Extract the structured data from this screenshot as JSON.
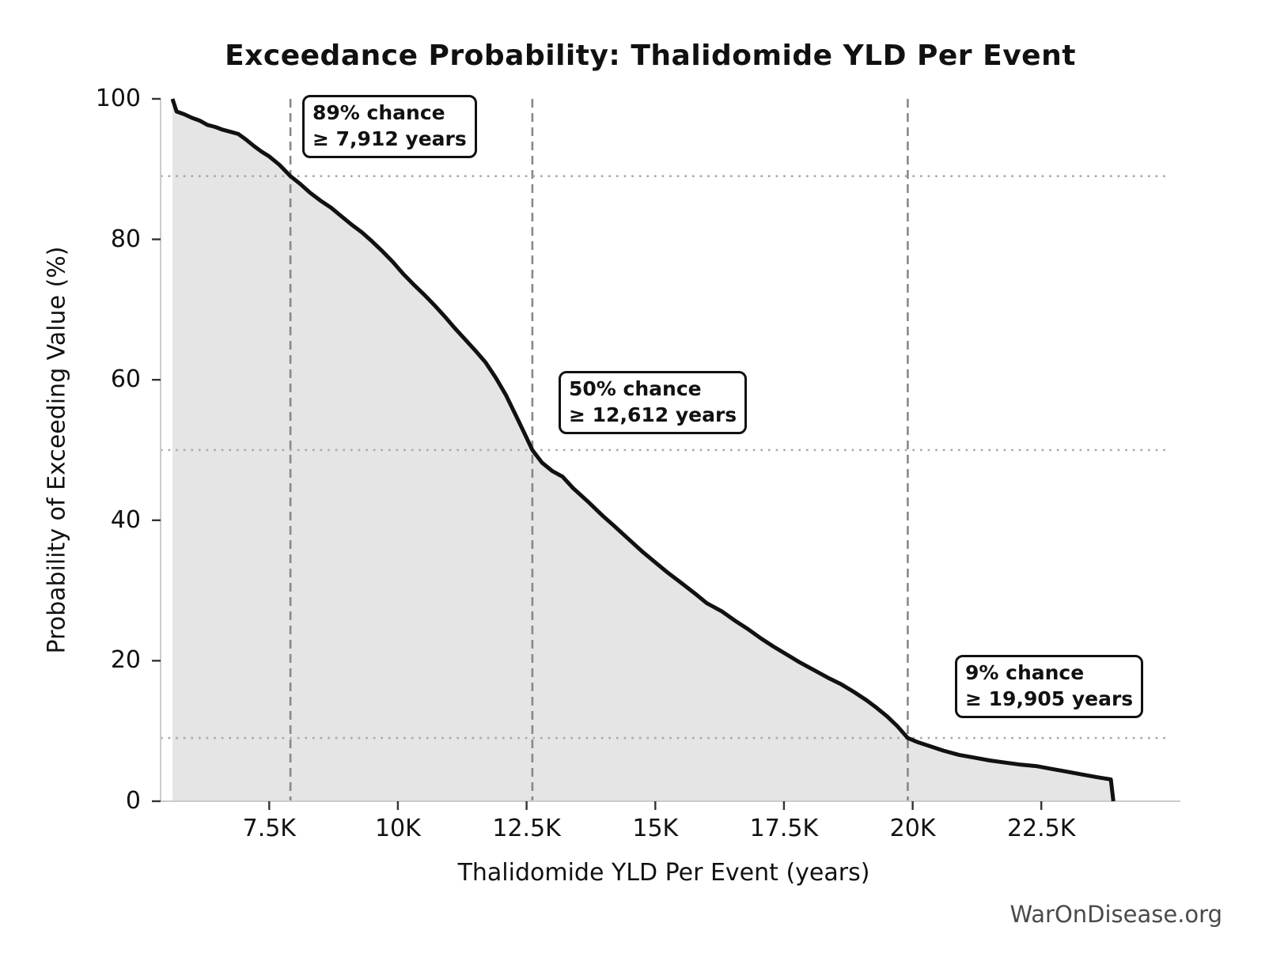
{
  "chart": {
    "source_label": "WarOnDisease.org"
  },
  "chart_data": {
    "type": "area",
    "title": "Exceedance Probability: Thalidomide YLD Per Event",
    "xlabel": "Thalidomide YLD Per Event (years)",
    "ylabel": "Probability of Exceeding Value (%)",
    "watermark": "WarOnDisease.org",
    "xlim": [
      5390,
      24940
    ],
    "ylim": [
      0,
      100
    ],
    "x_ticks": [
      {
        "value": 7500,
        "label": "7.5K"
      },
      {
        "value": 10000,
        "label": "10K"
      },
      {
        "value": 12500,
        "label": "12.5K"
      },
      {
        "value": 15000,
        "label": "15K"
      },
      {
        "value": 17500,
        "label": "17.5K"
      },
      {
        "value": 20000,
        "label": "20K"
      },
      {
        "value": 22500,
        "label": "22.5K"
      }
    ],
    "y_ticks": [
      {
        "value": 0,
        "label": "0"
      },
      {
        "value": 20,
        "label": "20"
      },
      {
        "value": 40,
        "label": "40"
      },
      {
        "value": 60,
        "label": "60"
      },
      {
        "value": 80,
        "label": "80"
      },
      {
        "value": 100,
        "label": "100"
      }
    ],
    "grid": {
      "dashed_vlines_x": [
        7912,
        12612,
        19905
      ],
      "dotted_hlines_y": [
        89,
        50,
        9
      ]
    },
    "annotations": [
      {
        "line1": "89% chance",
        "line2": "≥ 7,912 years",
        "x_years": 7912,
        "probability_pct": 89
      },
      {
        "line1": "50% chance",
        "line2": "≥ 12,612 years",
        "x_years": 12612,
        "probability_pct": 50
      },
      {
        "line1": "9% chance",
        "line2": "≥ 19,905 years",
        "x_years": 19905,
        "probability_pct": 9
      }
    ],
    "curve": [
      [
        5620,
        100
      ],
      [
        5700,
        98.2
      ],
      [
        5850,
        97.8
      ],
      [
        6000,
        97.3
      ],
      [
        6150,
        96.9
      ],
      [
        6300,
        96.3
      ],
      [
        6450,
        96.0
      ],
      [
        6600,
        95.6
      ],
      [
        6750,
        95.3
      ],
      [
        6900,
        95.0
      ],
      [
        7050,
        94.2
      ],
      [
        7200,
        93.3
      ],
      [
        7350,
        92.5
      ],
      [
        7500,
        91.8
      ],
      [
        7700,
        90.6
      ],
      [
        7912,
        89.0
      ],
      [
        8100,
        87.9
      ],
      [
        8300,
        86.6
      ],
      [
        8500,
        85.5
      ],
      [
        8700,
        84.5
      ],
      [
        8900,
        83.3
      ],
      [
        9100,
        82.1
      ],
      [
        9300,
        81.0
      ],
      [
        9500,
        79.7
      ],
      [
        9700,
        78.3
      ],
      [
        9900,
        76.8
      ],
      [
        10100,
        75.1
      ],
      [
        10300,
        73.6
      ],
      [
        10500,
        72.2
      ],
      [
        10700,
        70.7
      ],
      [
        10900,
        69.1
      ],
      [
        11100,
        67.4
      ],
      [
        11300,
        65.8
      ],
      [
        11500,
        64.2
      ],
      [
        11700,
        62.5
      ],
      [
        11900,
        60.3
      ],
      [
        12100,
        57.8
      ],
      [
        12300,
        54.8
      ],
      [
        12450,
        52.5
      ],
      [
        12612,
        50.0
      ],
      [
        12800,
        48.2
      ],
      [
        13000,
        47.0
      ],
      [
        13200,
        46.2
      ],
      [
        13400,
        44.6
      ],
      [
        13700,
        42.6
      ],
      [
        13970,
        40.7
      ],
      [
        14200,
        39.2
      ],
      [
        14500,
        37.2
      ],
      [
        14740,
        35.6
      ],
      [
        15000,
        34.0
      ],
      [
        15250,
        32.5
      ],
      [
        15500,
        31.1
      ],
      [
        15800,
        29.4
      ],
      [
        16000,
        28.2
      ],
      [
        16300,
        27.0
      ],
      [
        16550,
        25.7
      ],
      [
        16800,
        24.5
      ],
      [
        17050,
        23.2
      ],
      [
        17300,
        22.0
      ],
      [
        17550,
        20.9
      ],
      [
        17800,
        19.8
      ],
      [
        18100,
        18.6
      ],
      [
        18350,
        17.6
      ],
      [
        18600,
        16.7
      ],
      [
        18850,
        15.6
      ],
      [
        19100,
        14.4
      ],
      [
        19300,
        13.3
      ],
      [
        19500,
        12.1
      ],
      [
        19700,
        10.7
      ],
      [
        19905,
        9.0
      ],
      [
        20100,
        8.4
      ],
      [
        20350,
        7.8
      ],
      [
        20600,
        7.2
      ],
      [
        20900,
        6.6
      ],
      [
        21200,
        6.2
      ],
      [
        21500,
        5.8
      ],
      [
        21800,
        5.5
      ],
      [
        22100,
        5.2
      ],
      [
        22400,
        5.0
      ],
      [
        22700,
        4.6
      ],
      [
        23000,
        4.2
      ],
      [
        23300,
        3.8
      ],
      [
        23600,
        3.4
      ],
      [
        23850,
        3.1
      ],
      [
        23900,
        0
      ]
    ],
    "colors": {
      "curve": "#111111",
      "fill": "#e5e5e5",
      "dashed_line": "#888888",
      "dotted_line": "#a8a8a8",
      "spine": "#cccccc",
      "tick": "#333333",
      "text": "#111111",
      "watermark": "#4a4a4a"
    }
  }
}
